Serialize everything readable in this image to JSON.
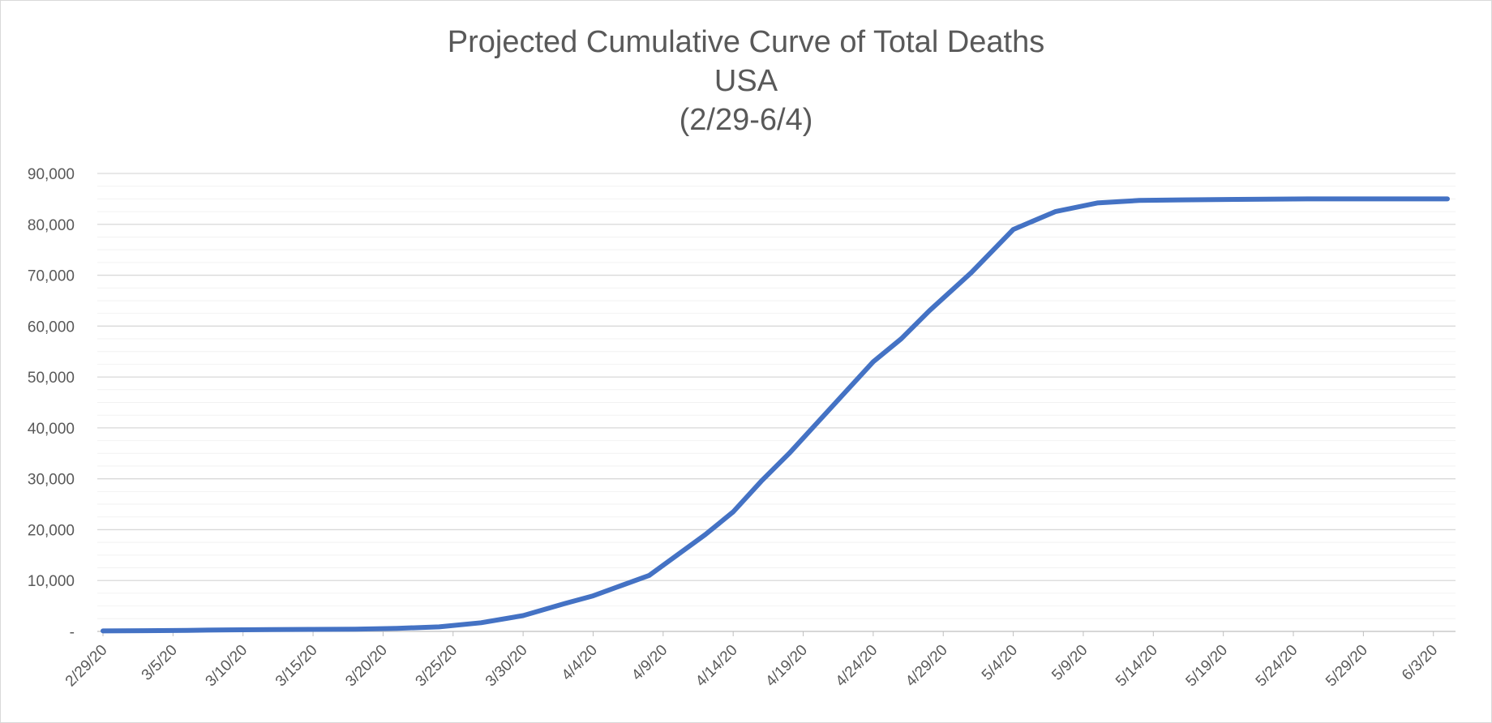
{
  "chart_data": {
    "type": "line",
    "title_lines": [
      "Projected Cumulative Curve of Total Deaths",
      "USA",
      "(2/29-6/4)"
    ],
    "xlabel": "",
    "ylabel": "",
    "ylim": [
      0,
      90000
    ],
    "y_ticks": [
      0,
      10000,
      20000,
      30000,
      40000,
      50000,
      60000,
      70000,
      80000,
      90000
    ],
    "y_tick_labels": [
      "-",
      "10,000",
      "20,000",
      "30,000",
      "40,000",
      "50,000",
      "60,000",
      "70,000",
      "80,000",
      "90,000"
    ],
    "x_tick_labels": [
      "2/29/20",
      "3/5/20",
      "3/10/20",
      "3/15/20",
      "3/20/20",
      "3/25/20",
      "3/30/20",
      "4/4/20",
      "4/9/20",
      "4/14/20",
      "4/19/20",
      "4/24/20",
      "4/29/20",
      "5/4/20",
      "5/9/20",
      "5/14/20",
      "5/19/20",
      "5/24/20",
      "5/29/20",
      "6/3/20"
    ],
    "grid": true,
    "line_color": "#4472c4",
    "series": [
      {
        "x": [
          "2/29/20",
          "3/3/20",
          "3/6/20",
          "3/9/20",
          "3/12/20",
          "3/15/20",
          "3/18/20",
          "3/21/20",
          "3/24/20",
          "3/27/20",
          "3/30/20",
          "4/2/20",
          "4/4/20",
          "4/6/20",
          "4/8/20",
          "4/10/20",
          "4/12/20",
          "4/14/20",
          "4/16/20",
          "4/18/20",
          "4/20/20",
          "4/22/20",
          "4/24/20",
          "4/26/20",
          "4/28/20",
          "5/1/20",
          "5/4/20",
          "5/7/20",
          "5/10/20",
          "5/13/20",
          "5/16/20",
          "5/20/20",
          "5/25/20",
          "5/30/20",
          "6/4/20"
        ],
        "values": [
          100,
          150,
          200,
          300,
          350,
          400,
          450,
          600,
          900,
          1700,
          3100,
          5500,
          7000,
          9000,
          11000,
          15000,
          19000,
          23500,
          29500,
          35000,
          41000,
          47000,
          53000,
          57500,
          63000,
          70500,
          79000,
          82500,
          84200,
          84700,
          84800,
          84900,
          85000,
          85000,
          85000
        ]
      }
    ]
  }
}
